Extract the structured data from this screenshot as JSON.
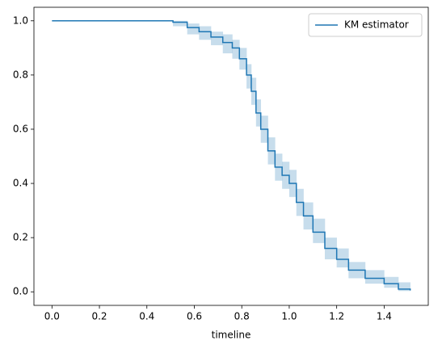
{
  "chart_data": {
    "type": "step",
    "xlabel": "timeline",
    "x": [
      0,
      0.51,
      0.57,
      0.62,
      0.67,
      0.72,
      0.76,
      0.79,
      0.82,
      0.84,
      0.86,
      0.88,
      0.91,
      0.94,
      0.97,
      1.0,
      1.03,
      1.06,
      1.1,
      1.15,
      1.2,
      1.25,
      1.32,
      1.4,
      1.46,
      1.51
    ],
    "series": [
      {
        "name": "KM estimator",
        "color": "#1f77b4",
        "values": [
          1.0,
          0.995,
          0.975,
          0.96,
          0.94,
          0.92,
          0.9,
          0.86,
          0.8,
          0.74,
          0.66,
          0.6,
          0.52,
          0.46,
          0.43,
          0.4,
          0.33,
          0.28,
          0.22,
          0.16,
          0.12,
          0.08,
          0.05,
          0.03,
          0.01,
          0.005
        ],
        "ci_lower": [
          1.0,
          0.98,
          0.95,
          0.93,
          0.91,
          0.88,
          0.86,
          0.82,
          0.75,
          0.69,
          0.61,
          0.55,
          0.47,
          0.41,
          0.38,
          0.35,
          0.28,
          0.23,
          0.18,
          0.12,
          0.09,
          0.05,
          0.03,
          0.015,
          0.003,
          0.001
        ],
        "ci_upper": [
          1.0,
          1.0,
          0.99,
          0.98,
          0.96,
          0.95,
          0.93,
          0.9,
          0.84,
          0.79,
          0.71,
          0.65,
          0.57,
          0.51,
          0.48,
          0.45,
          0.38,
          0.33,
          0.27,
          0.2,
          0.16,
          0.11,
          0.08,
          0.055,
          0.035,
          0.03
        ]
      }
    ],
    "xlim": [
      -0.076,
      1.586
    ],
    "ylim": [
      -0.05,
      1.05
    ],
    "xticks": [
      {
        "value": 0,
        "label": "0.0"
      },
      {
        "value": 0.2,
        "label": "0.2"
      },
      {
        "value": 0.4,
        "label": "0.4"
      },
      {
        "value": 0.6,
        "label": "0.6"
      },
      {
        "value": 0.8,
        "label": "0.8"
      },
      {
        "value": 1.0,
        "label": "1.0"
      },
      {
        "value": 1.2,
        "label": "1.2"
      },
      {
        "value": 1.4,
        "label": "1.4"
      }
    ],
    "yticks": [
      {
        "value": 0,
        "label": "0.0"
      },
      {
        "value": 0.2,
        "label": "0.2"
      },
      {
        "value": 0.4,
        "label": "0.4"
      },
      {
        "value": 0.6,
        "label": "0.6"
      },
      {
        "value": 0.8,
        "label": "0.8"
      },
      {
        "value": 1.0,
        "label": "1.0"
      }
    ],
    "legend": "upper right"
  }
}
